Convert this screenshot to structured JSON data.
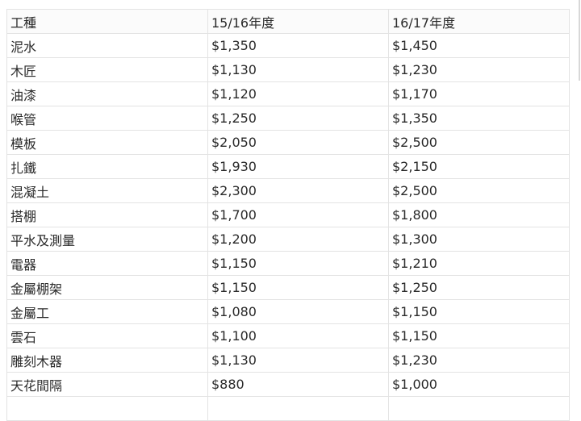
{
  "table": {
    "headers": [
      "工種",
      "15/16年度",
      "16/17年度"
    ],
    "rows": [
      [
        "泥水",
        "$1,350",
        "$1,450"
      ],
      [
        "木匠",
        "$1,130",
        "$1,230"
      ],
      [
        "油漆",
        "$1,120",
        "$1,170"
      ],
      [
        "喉管",
        "$1,250",
        "$1,350"
      ],
      [
        "模板",
        "$2,050",
        "$2,500"
      ],
      [
        "扎鐵",
        "$1,930",
        "$2,150"
      ],
      [
        "混凝土",
        "$2,300",
        "$2,500"
      ],
      [
        "搭棚",
        "$1,700",
        "$1,800"
      ],
      [
        "平水及測量",
        "$1,200",
        "$1,300"
      ],
      [
        "電器",
        "$1,150",
        "$1,210"
      ],
      [
        "金屬棚架",
        "$1,150",
        "$1,250"
      ],
      [
        "金屬工",
        "$1,080",
        "$1,150"
      ],
      [
        "雲石",
        "$1,100",
        "$1,150"
      ],
      [
        "雕刻木器",
        "$1,130",
        "$1,230"
      ],
      [
        "天花間隔",
        "$880",
        "$1,000"
      ]
    ]
  }
}
